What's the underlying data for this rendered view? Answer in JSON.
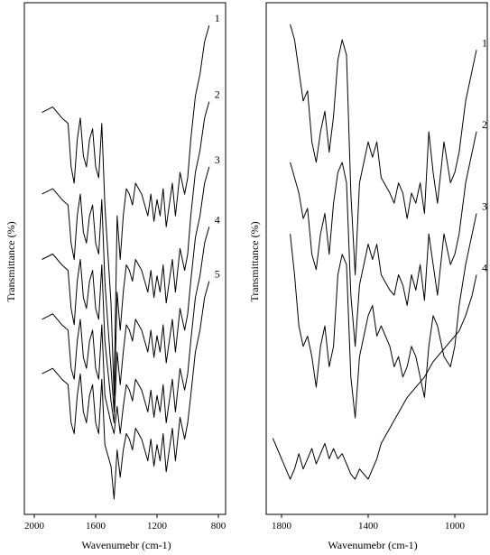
{
  "chart_data": [
    {
      "type": "line",
      "panel": "left",
      "ylabel": "Transmittance (%)",
      "xlabel": "Wavenumebr (cm-1)",
      "xlim": [
        2000,
        800
      ],
      "xticks": [
        2000,
        1600,
        1200,
        800
      ],
      "grid": false,
      "series": [
        {
          "name": "1",
          "x": [
            1950,
            1880,
            1820,
            1780,
            1760,
            1740,
            1720,
            1700,
            1680,
            1660,
            1640,
            1620,
            1600,
            1580,
            1560,
            1540,
            1500,
            1480,
            1460,
            1440,
            1420,
            1400,
            1380,
            1360,
            1340,
            1300,
            1260,
            1240,
            1220,
            1200,
            1180,
            1160,
            1140,
            1120,
            1100,
            1080,
            1050,
            1020,
            1000,
            980,
            950,
            920,
            890,
            860
          ],
          "y": [
            57,
            58,
            56,
            55,
            47,
            44,
            52,
            56,
            49,
            47,
            52,
            54,
            47,
            45,
            55,
            40,
            22,
            5,
            38,
            30,
            38,
            43,
            42,
            40,
            44,
            42,
            38,
            42,
            37,
            41,
            38,
            43,
            36,
            40,
            44,
            38,
            46,
            42,
            45,
            52,
            60,
            64,
            70,
            73
          ]
        },
        {
          "name": "2",
          "x": [
            1950,
            1880,
            1820,
            1780,
            1760,
            1740,
            1720,
            1700,
            1680,
            1660,
            1640,
            1620,
            1600,
            1580,
            1560,
            1540,
            1500,
            1480,
            1460,
            1440,
            1420,
            1400,
            1380,
            1360,
            1340,
            1300,
            1260,
            1240,
            1220,
            1200,
            1180,
            1160,
            1140,
            1120,
            1100,
            1080,
            1050,
            1020,
            1000,
            980,
            950,
            920,
            890,
            860
          ],
          "y": [
            42,
            43,
            41,
            40,
            33,
            30,
            38,
            42,
            35,
            33,
            38,
            40,
            33,
            31,
            41,
            26,
            10,
            2,
            24,
            17,
            24,
            29,
            28,
            26,
            30,
            28,
            24,
            28,
            23,
            27,
            24,
            29,
            22,
            26,
            30,
            24,
            32,
            28,
            31,
            38,
            46,
            50,
            56,
            59
          ]
        },
        {
          "name": "3",
          "x": [
            1950,
            1880,
            1820,
            1780,
            1760,
            1740,
            1720,
            1700,
            1680,
            1660,
            1640,
            1620,
            1600,
            1580,
            1560,
            1540,
            1500,
            1480,
            1460,
            1440,
            1420,
            1400,
            1380,
            1360,
            1340,
            1300,
            1260,
            1240,
            1220,
            1200,
            1180,
            1160,
            1140,
            1120,
            1100,
            1080,
            1050,
            1020,
            1000,
            980,
            950,
            920,
            890,
            860
          ],
          "y": [
            30,
            31,
            29,
            28,
            21,
            18,
            26,
            30,
            23,
            21,
            26,
            28,
            21,
            19,
            29,
            15,
            4,
            0,
            13,
            7,
            13,
            18,
            17,
            15,
            19,
            17,
            13,
            17,
            12,
            16,
            13,
            18,
            11,
            15,
            19,
            13,
            21,
            17,
            20,
            26,
            34,
            38,
            44,
            47
          ]
        },
        {
          "name": "4",
          "x": [
            1950,
            1880,
            1820,
            1780,
            1760,
            1740,
            1720,
            1700,
            1680,
            1660,
            1640,
            1620,
            1600,
            1580,
            1560,
            1540,
            1500,
            1480,
            1460,
            1440,
            1420,
            1400,
            1380,
            1360,
            1340,
            1300,
            1260,
            1240,
            1220,
            1200,
            1180,
            1160,
            1140,
            1120,
            1100,
            1080,
            1050,
            1020,
            1000,
            980,
            950,
            920,
            890,
            860
          ],
          "y": [
            19,
            20,
            18,
            17,
            10,
            8,
            15,
            19,
            12,
            10,
            15,
            17,
            10,
            8,
            18,
            5,
            0,
            -2,
            3,
            -2,
            3,
            7,
            6,
            4,
            8,
            6,
            2,
            6,
            1,
            5,
            2,
            7,
            0,
            4,
            8,
            2,
            10,
            6,
            9,
            15,
            23,
            27,
            33,
            36
          ]
        },
        {
          "name": "5",
          "x": [
            1950,
            1880,
            1820,
            1780,
            1760,
            1740,
            1720,
            1700,
            1680,
            1660,
            1640,
            1620,
            1600,
            1580,
            1560,
            1540,
            1500,
            1480,
            1460,
            1440,
            1420,
            1400,
            1380,
            1360,
            1340,
            1300,
            1260,
            1240,
            1220,
            1200,
            1180,
            1160,
            1140,
            1120,
            1100,
            1080,
            1050,
            1020,
            1000,
            980,
            950,
            920,
            890,
            860
          ],
          "y": [
            9,
            10,
            8,
            7,
            0,
            -2,
            5,
            9,
            2,
            0,
            5,
            7,
            0,
            -2,
            8,
            -4,
            -8,
            -14,
            -5,
            -10,
            -5,
            -2,
            -3,
            -5,
            -1,
            -3,
            -7,
            -3,
            -8,
            -4,
            -7,
            -2,
            -9,
            -5,
            -1,
            -7,
            1,
            -3,
            0,
            5,
            13,
            17,
            23,
            26
          ]
        }
      ]
    },
    {
      "type": "line",
      "panel": "right",
      "ylabel": "Transmittance (%)",
      "xlabel": "Wavenumebr (cm-1)",
      "xlim": [
        1850,
        900
      ],
      "xticks": [
        1800,
        1400,
        1000
      ],
      "grid": false,
      "series": [
        {
          "name": "1",
          "x": [
            1760,
            1740,
            1720,
            1700,
            1680,
            1660,
            1640,
            1620,
            1600,
            1580,
            1560,
            1540,
            1520,
            1500,
            1480,
            1460,
            1440,
            1400,
            1380,
            1360,
            1340,
            1300,
            1280,
            1260,
            1240,
            1220,
            1200,
            1180,
            1160,
            1140,
            1120,
            1100,
            1080,
            1050,
            1020,
            1000,
            980,
            950,
            920,
            900
          ],
          "y": [
            93,
            90,
            84,
            78,
            80,
            70,
            66,
            72,
            76,
            68,
            75,
            86,
            90,
            87,
            60,
            44,
            62,
            70,
            67,
            70,
            63,
            60,
            58,
            62,
            60,
            55,
            60,
            58,
            62,
            56,
            72,
            64,
            58,
            70,
            62,
            64,
            68,
            78,
            84,
            88
          ]
        },
        {
          "name": "2",
          "x": [
            1760,
            1740,
            1720,
            1700,
            1680,
            1660,
            1640,
            1620,
            1600,
            1580,
            1560,
            1540,
            1520,
            1500,
            1480,
            1460,
            1440,
            1400,
            1380,
            1360,
            1340,
            1300,
            1280,
            1260,
            1240,
            1220,
            1200,
            1180,
            1160,
            1140,
            1120,
            1100,
            1080,
            1050,
            1020,
            1000,
            980,
            950,
            920,
            900
          ],
          "y": [
            66,
            63,
            60,
            55,
            57,
            48,
            45,
            52,
            56,
            48,
            58,
            64,
            66,
            62,
            40,
            30,
            42,
            50,
            47,
            50,
            44,
            41,
            40,
            44,
            42,
            38,
            44,
            41,
            46,
            39,
            52,
            46,
            40,
            52,
            46,
            48,
            52,
            62,
            68,
            72
          ]
        },
        {
          "name": "3",
          "x": [
            1760,
            1740,
            1720,
            1700,
            1680,
            1660,
            1640,
            1620,
            1600,
            1580,
            1560,
            1540,
            1520,
            1500,
            1480,
            1460,
            1440,
            1400,
            1380,
            1360,
            1340,
            1300,
            1280,
            1260,
            1240,
            1220,
            1200,
            1180,
            1160,
            1140,
            1120,
            1100,
            1080,
            1050,
            1020,
            1000,
            980,
            950,
            920,
            900
          ],
          "y": [
            52,
            44,
            34,
            30,
            32,
            28,
            22,
            30,
            34,
            26,
            30,
            44,
            48,
            46,
            24,
            16,
            28,
            36,
            38,
            32,
            34,
            30,
            26,
            28,
            24,
            26,
            30,
            28,
            24,
            20,
            30,
            36,
            34,
            28,
            26,
            30,
            38,
            46,
            52,
            56
          ]
        },
        {
          "name": "4",
          "x": [
            1840,
            1820,
            1800,
            1780,
            1760,
            1740,
            1720,
            1700,
            1680,
            1660,
            1640,
            1620,
            1600,
            1580,
            1560,
            1540,
            1520,
            1500,
            1480,
            1460,
            1440,
            1400,
            1380,
            1360,
            1340,
            1300,
            1260,
            1220,
            1180,
            1140,
            1100,
            1060,
            1020,
            980,
            950,
            920,
            900
          ],
          "y": [
            12,
            10,
            8,
            6,
            4,
            6,
            9,
            6,
            8,
            10,
            7,
            9,
            11,
            8,
            10,
            8,
            9,
            7,
            5,
            4,
            6,
            4,
            6,
            8,
            11,
            14,
            17,
            20,
            22,
            24,
            27,
            29,
            31,
            33,
            36,
            40,
            44
          ]
        }
      ]
    }
  ]
}
